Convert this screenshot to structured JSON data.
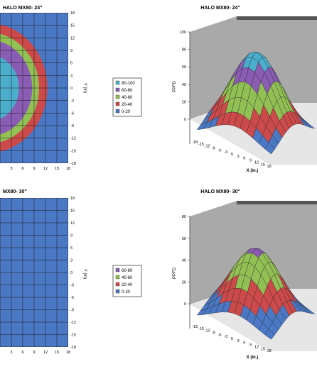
{
  "chart_data": [
    {
      "type": "heatmap",
      "title": "HALO MX80- 24\"",
      "ylabel": "Y (in)",
      "x_ticks": [
        "3",
        "6",
        "9",
        "12",
        "15",
        "18"
      ],
      "y_ticks": [
        "18",
        "15",
        "12",
        "9",
        "6",
        "3",
        "0",
        "-3",
        "-6",
        "-9",
        "-12",
        "-15",
        "-18"
      ],
      "legend": [
        "80-100",
        "60-80",
        "40-60",
        "20-40",
        "0-20"
      ],
      "legend_position": "right",
      "contour_radii": [
        15.5,
        11.5,
        8
      ],
      "grid": true
    },
    {
      "type": "surface",
      "title": "HALO MX80- 24\"",
      "xlabel": "X (in.)",
      "ylabel": "PPFD",
      "ylim": [
        0,
        100
      ],
      "z_ticks": [
        "100",
        "80",
        "60",
        "40",
        "20",
        "0"
      ],
      "x_ticks": [
        "-18",
        "-15",
        "-12",
        "-9",
        "-6",
        "-3",
        "0",
        "3",
        "6",
        "9",
        "12",
        "15",
        "18"
      ],
      "peak": 95
    },
    {
      "type": "heatmap",
      "title": "MX80- 30\"",
      "ylabel": "Y (in)",
      "x_ticks": [
        "3",
        "6",
        "9",
        "12",
        "15",
        "18"
      ],
      "y_ticks": [
        "18",
        "15",
        "12",
        "9",
        "6",
        "3",
        "0",
        "-3",
        "-6",
        "-9",
        "-12",
        "-15",
        "-18"
      ],
      "legend": [
        "60-80",
        "40-60",
        "20-40",
        "0-20"
      ],
      "legend_position": "right",
      "contour_radii": [
        17,
        13,
        1.5
      ],
      "grid": true
    },
    {
      "type": "surface",
      "title": "HALO MX80- 30\"",
      "xlabel": "X (in.)",
      "ylabel": "PPFD",
      "ylim": [
        0,
        80
      ],
      "z_ticks": [
        "80",
        "60",
        "40",
        "20",
        "0"
      ],
      "x_ticks": [
        "-18",
        "-15",
        "-12",
        "-9",
        "-6",
        "-3",
        "0",
        "3",
        "6",
        "9",
        "12",
        "15",
        "18"
      ],
      "peak": 65
    }
  ],
  "colors": {
    "80-100": "#4aaecc",
    "60-80": "#8a5cb4",
    "40-60": "#92c054",
    "20-40": "#cc4a4a",
    "0-20": "#4a78c4",
    "wall": "#a9a9a9",
    "wall_dark": "#555555"
  }
}
